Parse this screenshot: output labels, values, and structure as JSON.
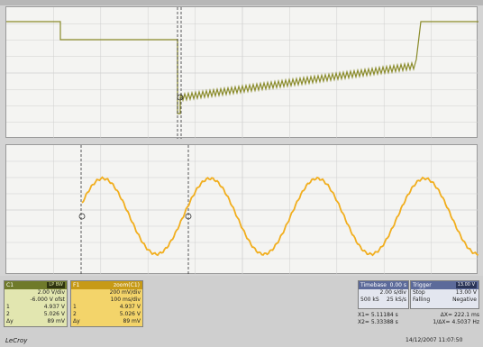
{
  "panels": {
    "c1": {
      "title": "C1",
      "tag": "LP BW",
      "rows": [
        [
          "",
          "2.00 V/div"
        ],
        [
          "",
          "-6.000 V ofst"
        ],
        [
          "1",
          "4.937 V"
        ],
        [
          "2",
          "5.026 V"
        ],
        [
          "Δy",
          "89 mV"
        ]
      ]
    },
    "f1": {
      "title": "F1",
      "subtitle": "zoom(C1)",
      "rows": [
        [
          "",
          "200 mV/div"
        ],
        [
          "",
          "100 ms/div"
        ],
        [
          "1",
          "4.937 V"
        ],
        [
          "2",
          "5.026 V"
        ],
        [
          "Δy",
          "89 mV"
        ]
      ]
    },
    "timebase": {
      "title": "Timebase",
      "value": "0.00 s",
      "rows": [
        [
          "",
          "2.00 s/div"
        ],
        [
          "500 kS",
          "25 kS/s"
        ]
      ]
    },
    "trigger": {
      "title": "Trigger",
      "tag": "13.00 V",
      "rows": [
        [
          "Stop",
          "13.00 V"
        ],
        [
          "Falling",
          "Negative"
        ]
      ]
    },
    "cursors": {
      "x1_label": "X1=",
      "x1_value": "5.11184 s",
      "dx_label": "ΔX=",
      "dx_value": "222.1 ms",
      "x2_label": "X2=",
      "x2_value": "5.33388 s",
      "inv_label": "1/ΔX=",
      "inv_value": "4.5037 Hz"
    }
  },
  "brand": "LeCroy",
  "timestamp": "14/12/2007 11:07:50",
  "colors": {
    "c1_trace": "#8a8b2a",
    "zoom_trace": "#f1ae1e",
    "grid": "#cfcfcf",
    "grid_bg": "#f4f4f2"
  }
}
